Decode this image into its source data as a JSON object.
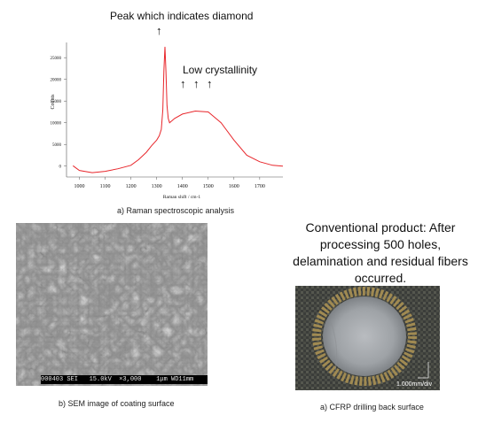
{
  "raman": {
    "peak_annotation": "Peak which indicates diamond",
    "peak_arrow": "↑",
    "low_annotation": "Low crystallinity",
    "low_arrows": [
      "↑",
      "↑",
      "↑"
    ],
    "caption": "a) Raman spectroscopic analysis",
    "chart_data": {
      "type": "line",
      "xlabel": "Raman shift / cm-1",
      "ylabel": "Counts",
      "x_ticks": [
        1000,
        1100,
        1200,
        1300,
        1400,
        1500,
        1600,
        1700
      ],
      "y_ticks": [
        0,
        5000,
        10000,
        15000,
        20000,
        25000
      ],
      "xlim": [
        950,
        1790
      ],
      "ylim": [
        -2500,
        28500
      ],
      "line_color": "#e8262b",
      "series": [
        {
          "x": [
            975,
            1000,
            1050,
            1100,
            1150,
            1200,
            1230,
            1260,
            1280,
            1300,
            1310,
            1318,
            1324,
            1328,
            1332,
            1336,
            1340,
            1345,
            1350,
            1370,
            1400,
            1450,
            1500,
            1520,
            1550,
            1600,
            1650,
            1700,
            1750,
            1790
          ],
          "y": [
            100,
            -1000,
            -1500,
            -1200,
            -600,
            200,
            1500,
            3200,
            4700,
            6000,
            7000,
            8500,
            13000,
            22000,
            27500,
            22000,
            14000,
            11000,
            10000,
            11000,
            12000,
            12700,
            12500,
            11500,
            10000,
            6000,
            2500,
            1000,
            200,
            0
          ]
        }
      ]
    }
  },
  "sem": {
    "info_bar": "000403 SEI   15.0kV  ×3,000    1μm WD11mm",
    "caption": "b) SEM image of coating surface"
  },
  "cfrp": {
    "description": "Conventional product: After processing 500 holes, delamination and residual fibers occurred.",
    "scale_label": "1.000mm/div",
    "caption": "a) CFRP drilling back surface"
  }
}
